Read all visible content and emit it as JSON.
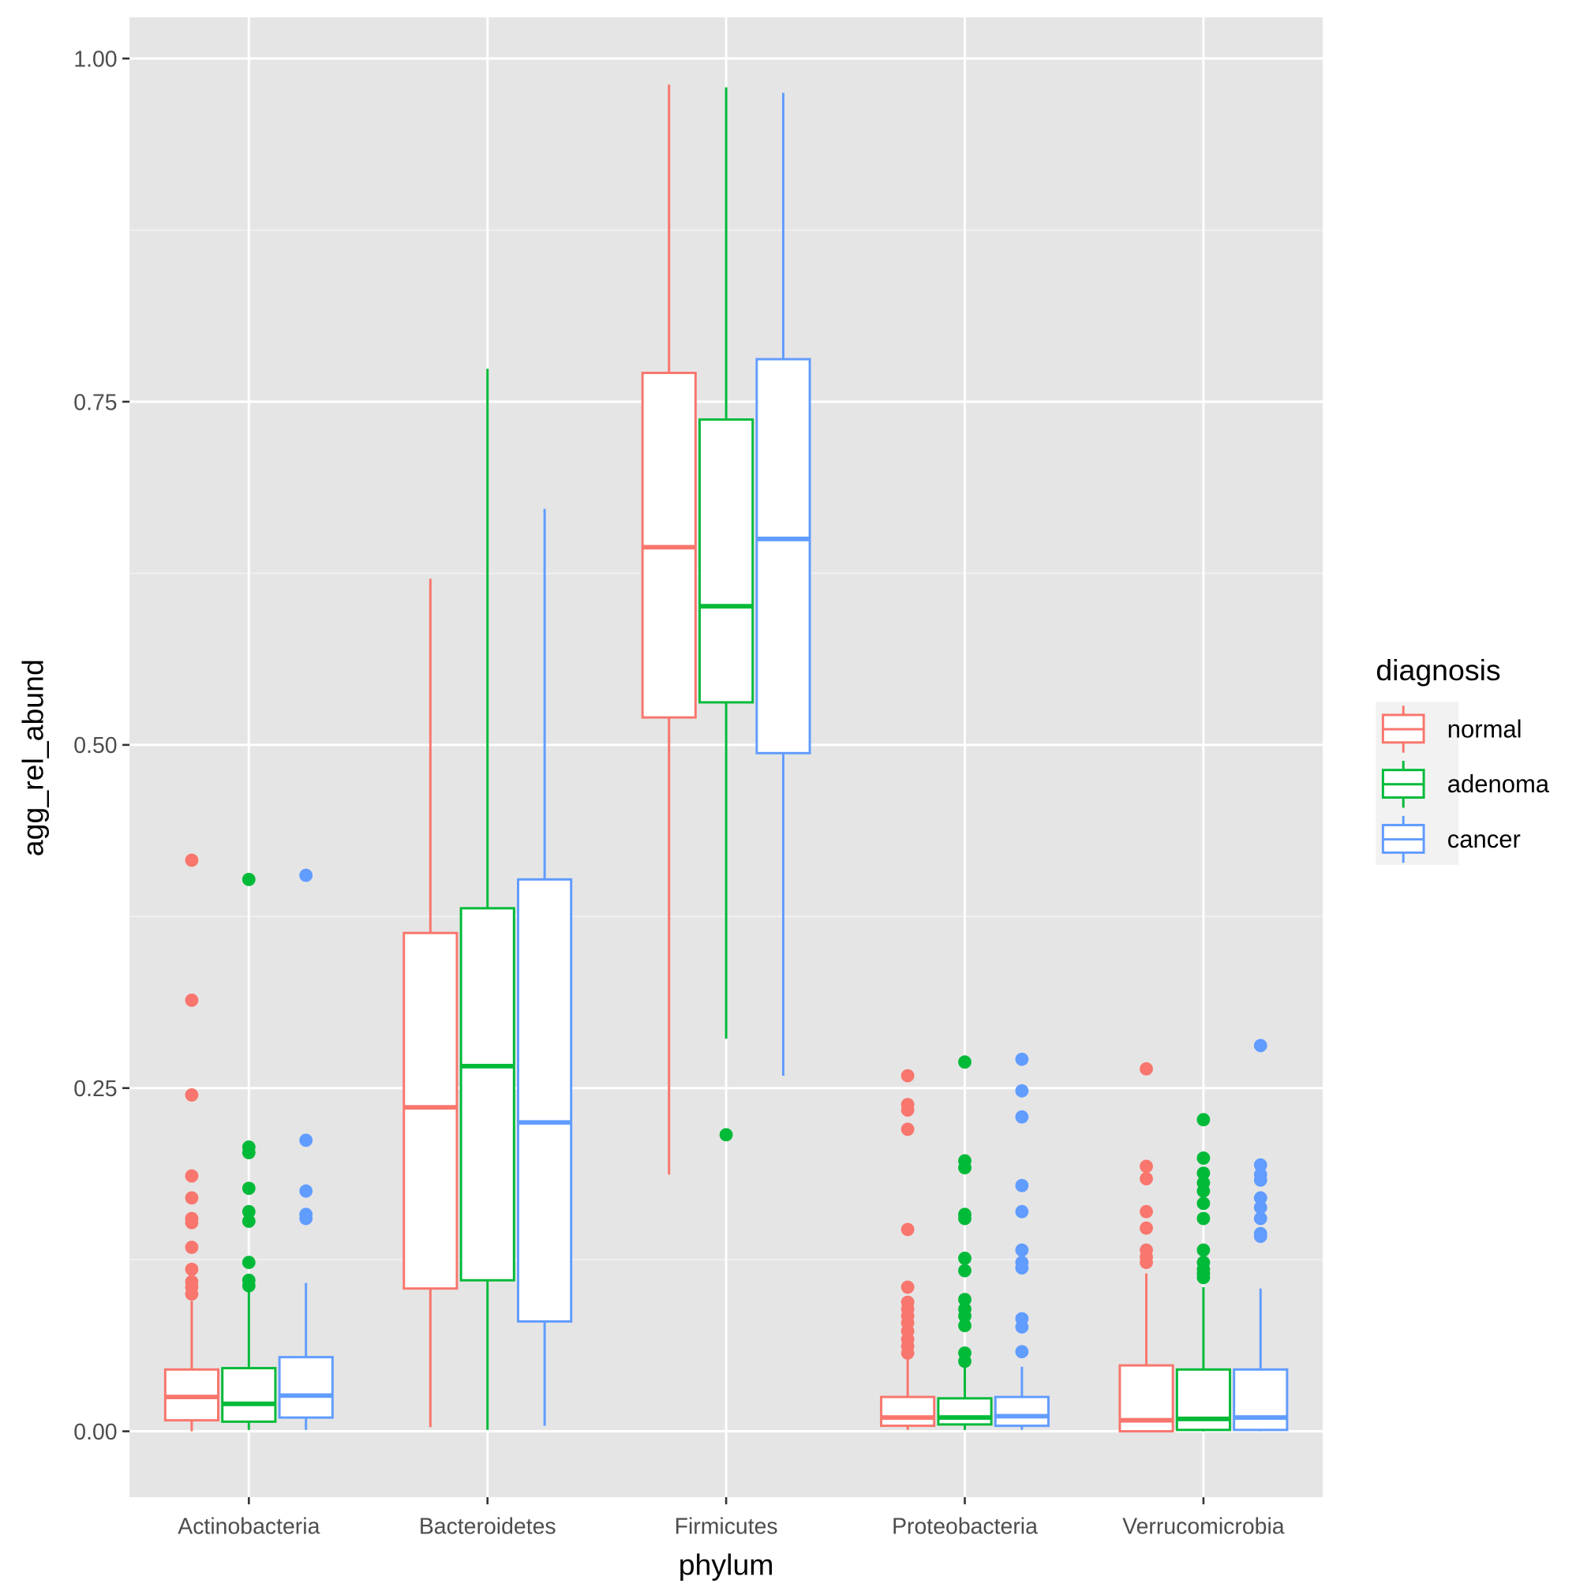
{
  "chart_data": {
    "type": "boxplot",
    "xlabel": "phylum",
    "ylabel": "agg_rel_abund",
    "ylim": [
      -0.048,
      1.03
    ],
    "yticks": [
      0,
      0.25,
      0.5,
      0.75,
      1.0
    ],
    "ytick_labels": [
      "0.00",
      "0.25",
      "0.50",
      "0.75",
      "1.00"
    ],
    "grid": true,
    "categories": [
      "Actinobacteria",
      "Bacteroidetes",
      "Firmicutes",
      "Proteobacteria",
      "Verrucomicrobia"
    ],
    "legend": {
      "title": "diagnosis",
      "position": "right"
    },
    "series": [
      {
        "name": "normal",
        "color": "#F8766D",
        "boxes": [
          {
            "low": 0.0,
            "q1": 0.008,
            "median": 0.025,
            "q3": 0.045,
            "high": 0.095,
            "outliers": [
              0.416,
              0.314,
              0.245,
              0.186,
              0.17,
              0.155,
              0.152,
              0.134,
              0.118,
              0.109,
              0.105,
              0.1
            ]
          },
          {
            "low": 0.003,
            "q1": 0.104,
            "median": 0.236,
            "q3": 0.363,
            "high": 0.621,
            "outliers": []
          },
          {
            "low": 0.187,
            "q1": 0.52,
            "median": 0.644,
            "q3": 0.771,
            "high": 0.981,
            "outliers": []
          },
          {
            "low": 0.001,
            "q1": 0.004,
            "median": 0.01,
            "q3": 0.025,
            "high": 0.06,
            "outliers": [
              0.259,
              0.238,
              0.234,
              0.22,
              0.147,
              0.105,
              0.094,
              0.089,
              0.084,
              0.079,
              0.073,
              0.067,
              0.062,
              0.057
            ]
          },
          {
            "low": 0.0,
            "q1": 0.0,
            "median": 0.008,
            "q3": 0.048,
            "high": 0.115,
            "outliers": [
              0.264,
              0.193,
              0.184,
              0.16,
              0.148,
              0.132,
              0.127,
              0.123
            ]
          }
        ]
      },
      {
        "name": "adenoma",
        "color": "#00BA38",
        "boxes": [
          {
            "low": 0.001,
            "q1": 0.007,
            "median": 0.02,
            "q3": 0.046,
            "high": 0.105,
            "outliers": [
              0.402,
              0.207,
              0.203,
              0.177,
              0.16,
              0.153,
              0.123,
              0.11,
              0.106
            ]
          },
          {
            "low": 0.001,
            "q1": 0.11,
            "median": 0.266,
            "q3": 0.381,
            "high": 0.774,
            "outliers": []
          },
          {
            "low": 0.286,
            "q1": 0.531,
            "median": 0.601,
            "q3": 0.737,
            "high": 0.979,
            "outliers": [
              0.216
            ]
          },
          {
            "low": 0.001,
            "q1": 0.005,
            "median": 0.01,
            "q3": 0.024,
            "high": 0.048,
            "outliers": [
              0.269,
              0.197,
              0.192,
              0.158,
              0.155,
              0.126,
              0.117,
              0.096,
              0.089,
              0.084,
              0.077,
              0.057,
              0.051
            ]
          },
          {
            "low": 0.0,
            "q1": 0.001,
            "median": 0.009,
            "q3": 0.045,
            "high": 0.105,
            "outliers": [
              0.227,
              0.199,
              0.188,
              0.181,
              0.175,
              0.166,
              0.155,
              0.132,
              0.123,
              0.118,
              0.115,
              0.112
            ]
          }
        ]
      },
      {
        "name": "cancer",
        "color": "#619CFF",
        "boxes": [
          {
            "low": 0.001,
            "q1": 0.01,
            "median": 0.026,
            "q3": 0.054,
            "high": 0.108,
            "outliers": [
              0.405,
              0.212,
              0.175,
              0.158,
              0.155
            ]
          },
          {
            "low": 0.004,
            "q1": 0.08,
            "median": 0.225,
            "q3": 0.402,
            "high": 0.672,
            "outliers": []
          },
          {
            "low": 0.259,
            "q1": 0.494,
            "median": 0.65,
            "q3": 0.781,
            "high": 0.975,
            "outliers": []
          },
          {
            "low": 0.001,
            "q1": 0.004,
            "median": 0.011,
            "q3": 0.025,
            "high": 0.047,
            "outliers": [
              0.271,
              0.248,
              0.229,
              0.179,
              0.16,
              0.132,
              0.123,
              0.119,
              0.082,
              0.076,
              0.058
            ]
          },
          {
            "low": 0.0,
            "q1": 0.001,
            "median": 0.01,
            "q3": 0.045,
            "high": 0.104,
            "outliers": [
              0.281,
              0.194,
              0.187,
              0.183,
              0.17,
              0.163,
              0.155,
              0.144,
              0.142
            ]
          }
        ]
      }
    ]
  }
}
